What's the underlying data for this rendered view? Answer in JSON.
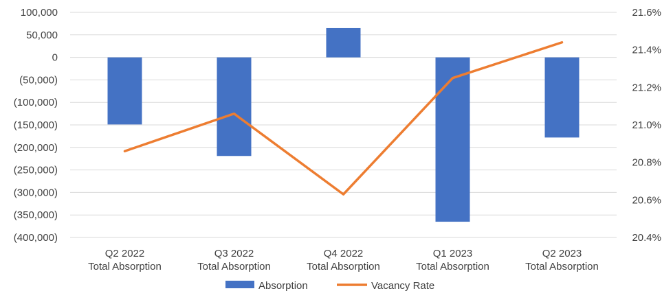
{
  "chart_data": {
    "type": "bar-line-combo",
    "categories": [
      [
        "Q2 2022",
        "Total Absorption"
      ],
      [
        "Q3 2022",
        "Total Absorption"
      ],
      [
        "Q4 2022",
        "Total Absorption"
      ],
      [
        "Q1 2023",
        "Total Absorption"
      ],
      [
        "Q2 2023",
        "Total Absorption"
      ]
    ],
    "series": [
      {
        "name": "Absorption",
        "kind": "bar",
        "axis": "left",
        "color": "#4472c4",
        "values": [
          -149000,
          -219000,
          65000,
          -365000,
          -178000
        ]
      },
      {
        "name": "Vacancy Rate",
        "kind": "line",
        "axis": "right",
        "color": "#ed7d31",
        "values": [
          20.86,
          21.06,
          20.63,
          21.25,
          21.44
        ]
      }
    ],
    "left_axis": {
      "min": -400000,
      "max": 100000,
      "step": 50000,
      "tick_labels": [
        "100,000",
        "50,000",
        "0",
        "(50,000)",
        "(100,000)",
        "(150,000)",
        "(200,000)",
        "(250,000)",
        "(300,000)",
        "(350,000)",
        "(400,000)"
      ]
    },
    "right_axis": {
      "min": 20.4,
      "max": 21.6,
      "step": 0.2,
      "tick_labels": [
        "21.6%",
        "21.4%",
        "21.2%",
        "21.0%",
        "20.8%",
        "20.6%",
        "20.4%"
      ]
    },
    "grid": true,
    "legend": {
      "position": "bottom",
      "entries": [
        "Absorption",
        "Vacancy Rate"
      ]
    },
    "title": ""
  }
}
